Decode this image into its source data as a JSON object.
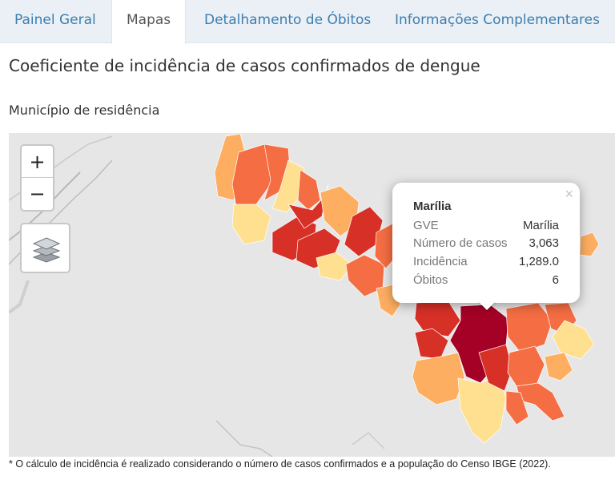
{
  "tabs": [
    {
      "label": "Painel Geral"
    },
    {
      "label": "Mapas"
    },
    {
      "label": "Detalhamento de Óbitos"
    },
    {
      "label": "Informações Complementares"
    }
  ],
  "title": "Coeficiente de incidência de casos confirmados de dengue",
  "subtitle": "Município de residência",
  "map": {
    "zoom_in_label": "+",
    "zoom_out_label": "−",
    "layers_icon": "layers-icon",
    "colors": {
      "very_high": "#a50026",
      "high": "#d73027",
      "medium_high": "#f46d43",
      "medium": "#fdae61",
      "low": "#fee090",
      "background": "#e6e6e6"
    },
    "popup": {
      "close_label": "×",
      "name": "Marília",
      "rows": [
        {
          "key": "GVE",
          "value": "Marília"
        },
        {
          "key": "Número de casos",
          "value": "3,063"
        },
        {
          "key": "Incidência",
          "value": "1,289.0"
        },
        {
          "key": "Óbitos",
          "value": "6"
        }
      ]
    }
  },
  "footnote": "* O cálculo de incidência é realizado considerando o número de casos confirmados e a população do Censo IBGE (2022)."
}
